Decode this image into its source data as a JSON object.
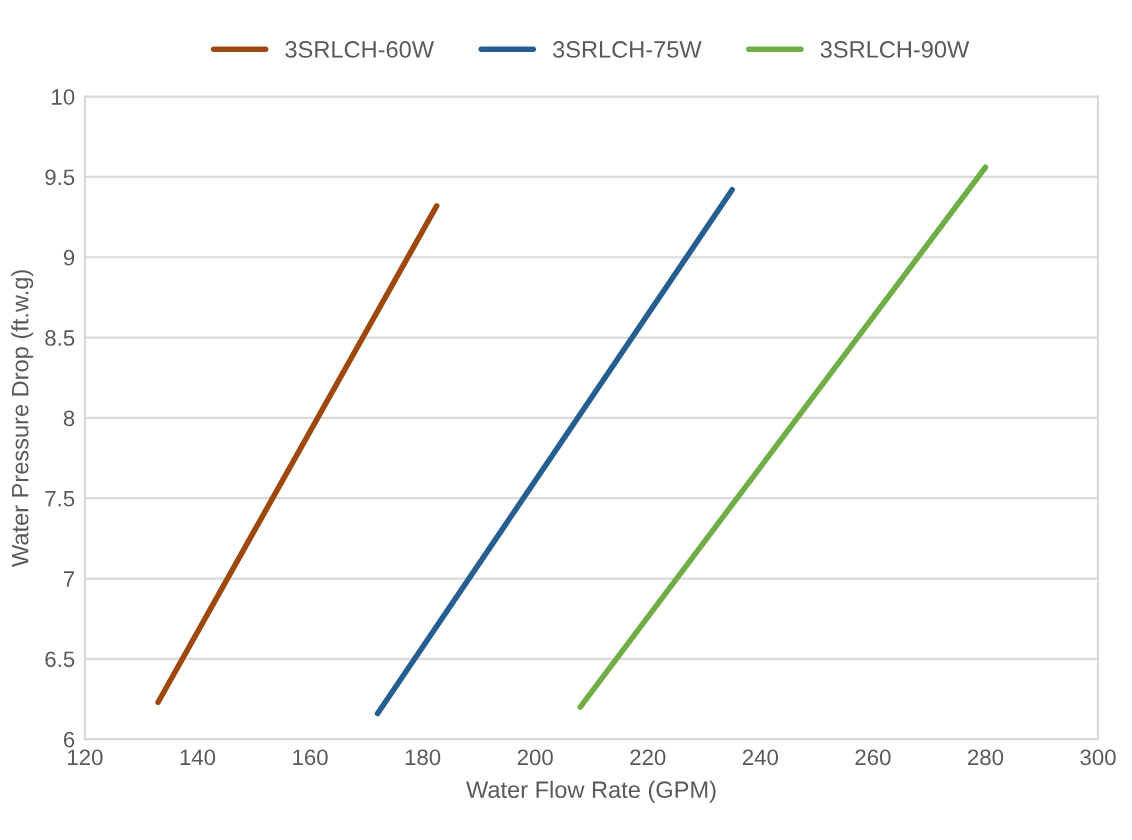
{
  "chart_data": {
    "type": "line",
    "xlabel": "Water Flow Rate (GPM)",
    "ylabel": "Water Pressure Drop (ft.w.g)",
    "series": [
      {
        "name": "3SRLCH-60W",
        "color": "#9e480e",
        "x": [
          133,
          182.5
        ],
        "values": [
          6.23,
          9.32
        ]
      },
      {
        "name": "3SRLCH-75W",
        "color": "#255e91",
        "x": [
          172,
          235
        ],
        "values": [
          6.16,
          9.42
        ]
      },
      {
        "name": "3SRLCH-90W",
        "color": "#70ad47",
        "x": [
          208,
          280
        ],
        "values": [
          6.2,
          9.56
        ]
      }
    ],
    "xlim": [
      120,
      300
    ],
    "xticks": [
      120,
      140,
      160,
      180,
      200,
      220,
      240,
      260,
      280,
      300
    ],
    "ylim": [
      6,
      10
    ],
    "yticks": [
      6,
      6.5,
      7,
      7.5,
      8,
      8.5,
      9,
      9.5,
      10
    ],
    "grid": "y",
    "legend": "top",
    "marker": "none",
    "line_style": "solid"
  }
}
